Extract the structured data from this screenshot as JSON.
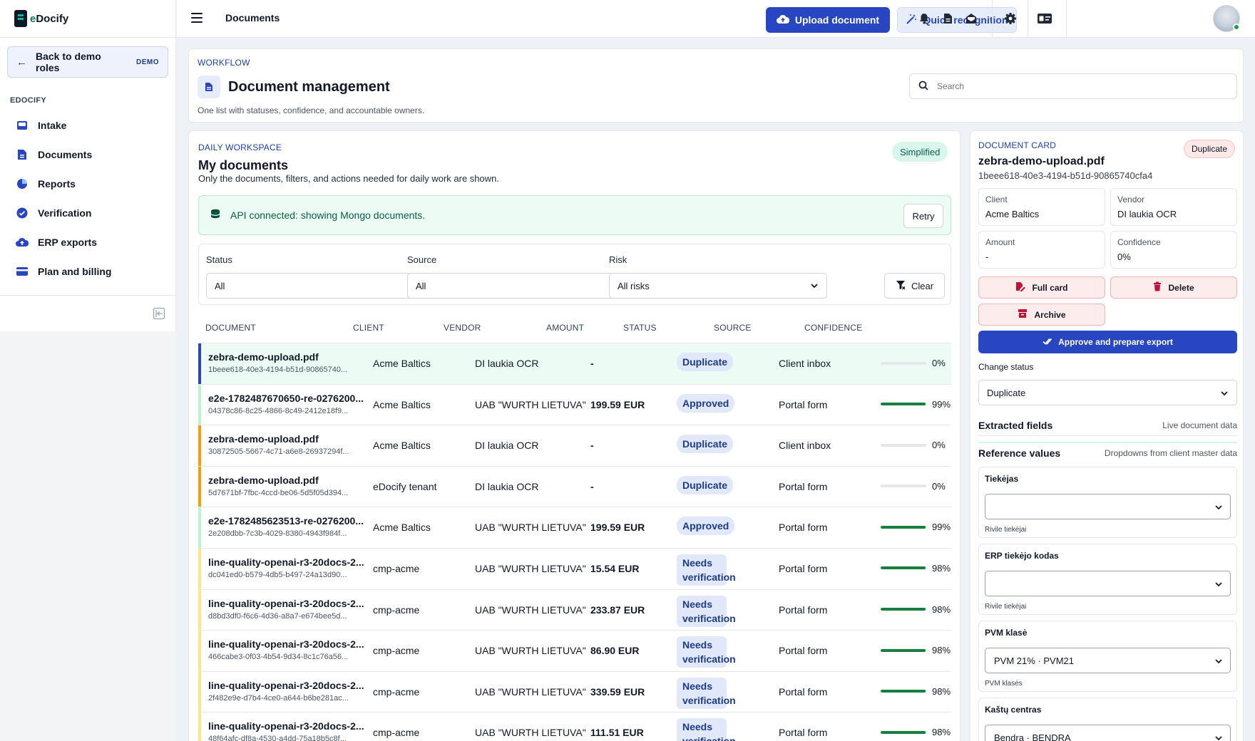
{
  "app": {
    "brand_prefix": "e",
    "brand_name": "Docify"
  },
  "sidebar": {
    "back": {
      "label": "Back to demo roles",
      "badge": "DEMO"
    },
    "section": "EDOCIFY",
    "items": [
      {
        "label": "Intake",
        "icon": "inbox-icon"
      },
      {
        "label": "Documents",
        "icon": "document-icon"
      },
      {
        "label": "Reports",
        "icon": "pie-chart-icon"
      },
      {
        "label": "Verification",
        "icon": "check-circle-icon"
      },
      {
        "label": "ERP exports",
        "icon": "cloud-upload-icon"
      },
      {
        "label": "Plan and billing",
        "icon": "credit-card-icon"
      }
    ]
  },
  "topbar": {
    "breadcrumb": "Documents",
    "upload_label": "Upload document",
    "quick_label": "Quick recognition"
  },
  "header": {
    "eyebrow": "WORKFLOW",
    "title": "Document management",
    "subtitle": "One list with statuses, confidence, and accountable owners.",
    "search_placeholder": "Search"
  },
  "workspace": {
    "eyebrow": "DAILY WORKSPACE",
    "title": "My documents",
    "subtitle": "Only the documents, filters, and actions needed for daily work are shown.",
    "mode_badge": "Simplified",
    "api_message": "API connected: showing Mongo documents.",
    "retry_label": "Retry",
    "filters": {
      "status_label": "Status",
      "status_value": "All",
      "source_label": "Source",
      "source_value": "All",
      "risk_label": "Risk",
      "risk_value": "All risks",
      "clear_label": "Clear"
    },
    "columns": [
      "DOCUMENT",
      "CLIENT",
      "VENDOR",
      "AMOUNT",
      "STATUS",
      "SOURCE",
      "CONFIDENCE"
    ],
    "rows": [
      {
        "name": "zebra-demo-upload.pdf",
        "id": "1beee618-40e3-4194-b51d-90865740...",
        "client": "Acme Baltics",
        "vendor": "DI laukia OCR",
        "amount": "-",
        "status": "Duplicate",
        "source": "Client inbox",
        "confidence": "0%",
        "conf_value": 0,
        "bar_color": "#2845c2",
        "selected": true
      },
      {
        "name": "e2e-1782487670650-re-0276200...",
        "id": "04378c86-8c25-4866-8c49-2412e18f9...",
        "client": "Acme Baltics",
        "vendor": "UAB \"WURTH LIETUVA\"",
        "amount": "199.59 EUR",
        "status": "Approved",
        "source": "Portal form",
        "confidence": "99%",
        "conf_value": 99,
        "bar_color": "#bbf7d0"
      },
      {
        "name": "zebra-demo-upload.pdf",
        "id": "30872505-5667-4c71-a6e8-26937294f...",
        "client": "Acme Baltics",
        "vendor": "DI laukia OCR",
        "amount": "-",
        "status": "Duplicate",
        "source": "Client inbox",
        "confidence": "0%",
        "conf_value": 0,
        "bar_color": "#f59e0b"
      },
      {
        "name": "zebra-demo-upload.pdf",
        "id": "5d7671bf-7fbc-4ccd-be06-5d5f05d394...",
        "client": "eDocify tenant",
        "vendor": "DI laukia OCR",
        "amount": "-",
        "status": "Duplicate",
        "source": "Portal form",
        "confidence": "0%",
        "conf_value": 0,
        "bar_color": "#f59e0b"
      },
      {
        "name": "e2e-1782485623513-re-0276200...",
        "id": "2e208dbb-7c3b-4029-8380-4943f984f...",
        "client": "Acme Baltics",
        "vendor": "UAB \"WURTH LIETUVA\"",
        "amount": "199.59 EUR",
        "status": "Approved",
        "source": "Portal form",
        "confidence": "99%",
        "conf_value": 99,
        "bar_color": "#bbf7d0"
      },
      {
        "name": "line-quality-openai-r3-20docs-2...",
        "id": "dc041ed0-b579-4db5-b497-24a13d90...",
        "client": "cmp-acme",
        "vendor": "UAB \"WURTH LIETUVA\"",
        "amount": "15.54 EUR",
        "status": "Needs verification",
        "source": "Portal form",
        "confidence": "98%",
        "conf_value": 98,
        "bar_color": "#fde68a"
      },
      {
        "name": "line-quality-openai-r3-20docs-2...",
        "id": "d8bd3df0-f6c6-4d36-a8a7-e674bee5d...",
        "client": "cmp-acme",
        "vendor": "UAB \"WURTH LIETUVA\"",
        "amount": "233.87 EUR",
        "status": "Needs verification",
        "source": "Portal form",
        "confidence": "98%",
        "conf_value": 98,
        "bar_color": "#fde68a"
      },
      {
        "name": "line-quality-openai-r3-20docs-2...",
        "id": "466cabe3-0f03-4b54-9d34-8c1c76a56...",
        "client": "cmp-acme",
        "vendor": "UAB \"WURTH LIETUVA\"",
        "amount": "86.90 EUR",
        "status": "Needs verification",
        "source": "Portal form",
        "confidence": "98%",
        "conf_value": 98,
        "bar_color": "#fde68a"
      },
      {
        "name": "line-quality-openai-r3-20docs-2...",
        "id": "2f482e9e-d7b4-4ce0-a644-b6be281ac...",
        "client": "cmp-acme",
        "vendor": "UAB \"WURTH LIETUVA\"",
        "amount": "339.59 EUR",
        "status": "Needs verification",
        "source": "Portal form",
        "confidence": "98%",
        "conf_value": 98,
        "bar_color": "#fde68a"
      },
      {
        "name": "line-quality-openai-r3-20docs-2...",
        "id": "48f64afc-df8a-4530-a4dd-75a18b5c8f...",
        "client": "cmp-acme",
        "vendor": "UAB \"WURTH LIETUVA\"",
        "amount": "111.51 EUR",
        "status": "Needs verification",
        "source": "Portal form",
        "confidence": "98%",
        "conf_value": 98,
        "bar_color": "#fde68a"
      }
    ]
  },
  "doc_card": {
    "eyebrow": "DOCUMENT CARD",
    "badge": "Duplicate",
    "title": "zebra-demo-upload.pdf",
    "id": "1beee618-40e3-4194-b51d-90865740cfa4",
    "client_label": "Client",
    "client_value": "Acme Baltics",
    "vendor_label": "Vendor",
    "vendor_value": "DI laukia OCR",
    "amount_label": "Amount",
    "amount_value": "-",
    "confidence_label": "Confidence",
    "confidence_value": "0%",
    "full_card_label": "Full card",
    "delete_label": "Delete",
    "archive_label": "Archive",
    "approve_label": "Approve and prepare export",
    "change_status_label": "Change status",
    "change_status_value": "Duplicate",
    "extracted_title": "Extracted fields",
    "extracted_hint": "Live document data",
    "reference_title": "Reference values",
    "reference_hint": "Dropdowns from client master data",
    "refs": [
      {
        "label": "Tiekėjas",
        "value": "",
        "hint": "Rivile tiekėjai"
      },
      {
        "label": "ERP tiekėjo kodas",
        "value": "",
        "hint": "Rivile tiekėjai"
      },
      {
        "label": "PVM klasė",
        "value": "PVM 21% · PVM21",
        "hint": "PVM klasės"
      },
      {
        "label": "Kaštų centras",
        "value": "Bendra · BENDRA",
        "hint": ""
      }
    ]
  }
}
